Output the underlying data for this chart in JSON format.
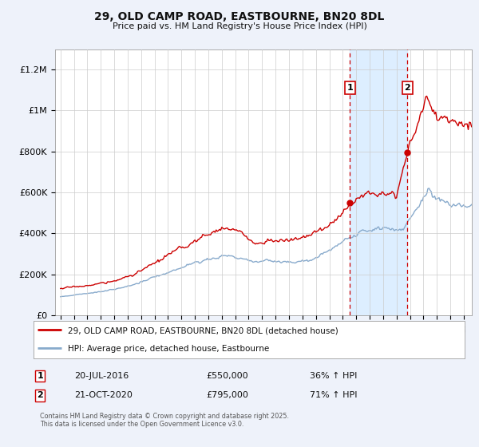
{
  "title_line1": "29, OLD CAMP ROAD, EASTBOURNE, BN20 8DL",
  "title_line2": "Price paid vs. HM Land Registry's House Price Index (HPI)",
  "ylabel_ticks": [
    "£0",
    "£200K",
    "£400K",
    "£600K",
    "£800K",
    "£1M",
    "£1.2M"
  ],
  "ytick_values": [
    0,
    200000,
    400000,
    600000,
    800000,
    1000000,
    1200000
  ],
  "ylim": [
    0,
    1300000
  ],
  "xlim_start": 1994.6,
  "xlim_end": 2025.6,
  "red_color": "#cc0000",
  "blue_color": "#88aacc",
  "span_color": "#ddeeff",
  "marker1_date": 2016.54,
  "marker1_label": "1",
  "marker1_price": 550000,
  "marker2_date": 2020.8,
  "marker2_label": "2",
  "marker2_price": 795000,
  "annotation1_text": "20-JUL-2016",
  "annotation1_price_text": "£550,000",
  "annotation1_hpi_text": "36% ↑ HPI",
  "annotation2_text": "21-OCT-2020",
  "annotation2_price_text": "£795,000",
  "annotation2_hpi_text": "71% ↑ HPI",
  "legend_label_red": "29, OLD CAMP ROAD, EASTBOURNE, BN20 8DL (detached house)",
  "legend_label_blue": "HPI: Average price, detached house, Eastbourne",
  "footer_text": "Contains HM Land Registry data © Crown copyright and database right 2025.\nThis data is licensed under the Open Government Licence v3.0.",
  "background_color": "#eef2fa",
  "plot_bg_color": "#ffffff",
  "grid_color": "#cccccc"
}
